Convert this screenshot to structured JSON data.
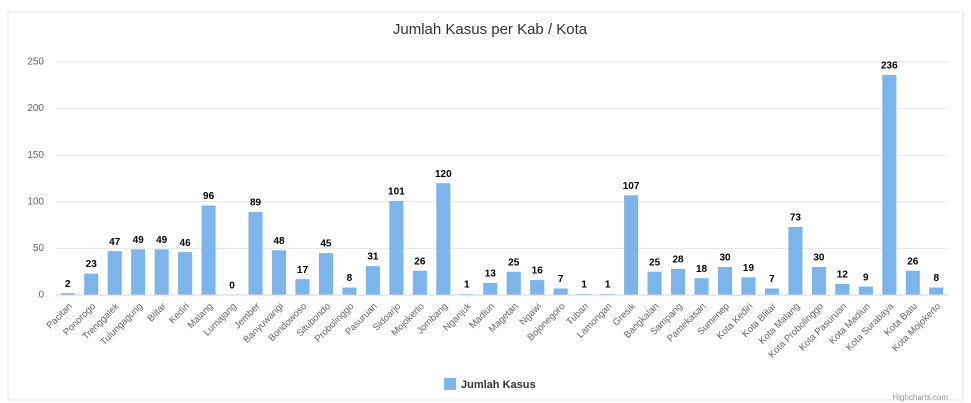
{
  "chart_data": {
    "type": "bar",
    "title": "Jumlah Kasus per Kab / Kota",
    "categories": [
      "Pacitan",
      "Ponorogo",
      "Trenggalek",
      "Tulungagung",
      "Blitar",
      "Kediri",
      "Malang",
      "Lumajang",
      "Jember",
      "Banyuwangi",
      "Bondowoso",
      "Situbondo",
      "Probolinggo",
      "Pasuruan",
      "Sidoarjo",
      "Mojokerto",
      "Jombang",
      "Nganjuk",
      "Madiun",
      "Magetan",
      "Ngawi",
      "Bojonegoro",
      "Tuban",
      "Lamongan",
      "Gresik",
      "Bangkalan",
      "Sampang",
      "Pamekasan",
      "Sumenep",
      "Kota Kediri",
      "Kota Blitar",
      "Kota Malang",
      "Kota Probolinggo",
      "Kota Pasuruan",
      "Kota Madiun",
      "Kota Surabaya",
      "Kota Batu",
      "Kota Mojokerto"
    ],
    "series": [
      {
        "name": "Jumlah Kasus",
        "color": "#7cb5ec",
        "values": [
          2,
          23,
          47,
          49,
          49,
          46,
          96,
          0,
          89,
          48,
          17,
          45,
          8,
          31,
          101,
          26,
          120,
          1,
          13,
          25,
          16,
          7,
          1,
          1,
          107,
          25,
          28,
          18,
          30,
          19,
          7,
          73,
          30,
          12,
          9,
          236,
          26,
          8
        ]
      }
    ],
    "ylim": [
      0,
      250
    ],
    "yticks": [
      0,
      50,
      100,
      150,
      200,
      250
    ],
    "grid": true,
    "legend": "bottom",
    "credits": "Highcharts.com"
  }
}
